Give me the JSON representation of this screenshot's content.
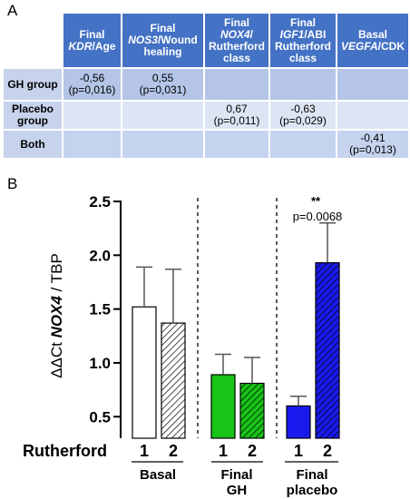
{
  "panel_a": {
    "letter": "A",
    "headers": [
      {
        "l1": "Final",
        "l2": "KDR",
        "l3": "/Age",
        "l4": ""
      },
      {
        "l1": "Final",
        "l2": "NOS3",
        "l3": "/Wound",
        "l4": "healing"
      },
      {
        "l1": "Final",
        "l2": "NOX4",
        "l3": "/",
        "l4": "Rutherford class"
      },
      {
        "l1": "Final",
        "l2": "IGF1",
        "l3": "/ABI",
        "l4": "Rutherford class"
      },
      {
        "l1": "Basal",
        "l2": "VEGFA",
        "l3": "/CDK",
        "l4": ""
      }
    ],
    "rows": [
      {
        "label": "GH group",
        "cells": [
          [
            "-0,56",
            "(p=0,016)"
          ],
          [
            "0,55",
            "(p=0,031)"
          ],
          [
            "",
            ""
          ],
          [
            "",
            ""
          ],
          [
            "",
            ""
          ]
        ]
      },
      {
        "label": "Placebo group",
        "cells": [
          [
            "",
            ""
          ],
          [
            "",
            ""
          ],
          [
            "0,67",
            "(p=0,011)"
          ],
          [
            "-0,63",
            "(p=0,029)"
          ],
          [
            "",
            ""
          ]
        ]
      },
      {
        "label": "Both",
        "cells": [
          [
            "",
            ""
          ],
          [
            "",
            ""
          ],
          [
            "",
            ""
          ],
          [
            "",
            ""
          ],
          [
            "-0,41",
            "(p=0,013)"
          ]
        ]
      }
    ]
  },
  "panel_b": {
    "letter": "B",
    "x_row_label": "Rutherford",
    "groups": [
      "Basal",
      "Final GH",
      "Final placebo"
    ],
    "group_label_lines": [
      [
        "Basal"
      ],
      [
        "Final",
        "GH"
      ],
      [
        "Final",
        "placebo"
      ]
    ],
    "significance": {
      "stars": "**",
      "p_text": "p=0.0068"
    },
    "colors": {
      "basal": "#ffffff",
      "gh": "#17c417",
      "placebo": "#1a1aee",
      "hatch": "#000000"
    }
  },
  "chart_data": {
    "type": "bar",
    "ylabel": "ΔΔCt NOX4 / TBP",
    "ylim": [
      0.3,
      2.5
    ],
    "yticks": [
      "0.5",
      "1.0",
      "1.5",
      "2.0",
      "2.5"
    ],
    "categories": [
      "1",
      "2",
      "1",
      "2",
      "1",
      "2"
    ],
    "groups": [
      "Basal",
      "Final GH",
      "Final placebo"
    ],
    "values": [
      1.52,
      1.37,
      0.89,
      0.81,
      0.6,
      1.93
    ],
    "errors": [
      0.37,
      0.5,
      0.19,
      0.24,
      0.09,
      0.37
    ],
    "grid": false
  }
}
